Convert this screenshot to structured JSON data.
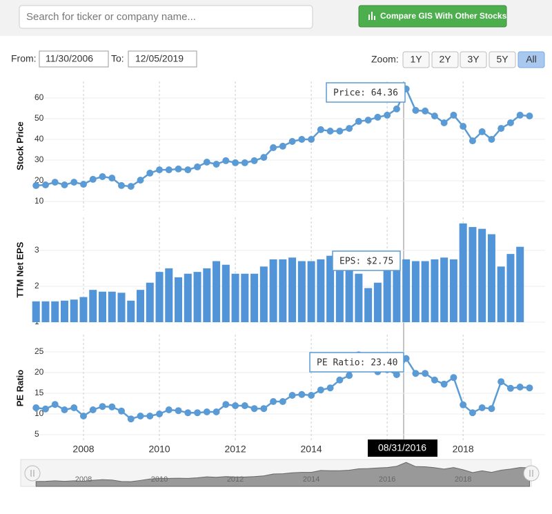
{
  "search_placeholder": "Search for ticker or company name...",
  "compare_button": "Compare GIS With Other Stocks",
  "from_label": "From:",
  "from_date": "11/30/2006",
  "to_label": "To:",
  "to_date": "12/05/2019",
  "zoom_label": "Zoom:",
  "zoom_buttons": [
    "1Y",
    "2Y",
    "3Y",
    "5Y",
    "All"
  ],
  "hover_date": "08/31/2016",
  "chart_data": [
    {
      "type": "line",
      "y_label": "Stock Price",
      "tooltip": "Price: 64.36",
      "color": "#5b9bd5",
      "x": [
        2006.75,
        2007,
        2007.25,
        2007.5,
        2007.75,
        2008,
        2008.25,
        2008.5,
        2008.75,
        2009,
        2009.25,
        2009.5,
        2009.75,
        2010,
        2010.25,
        2010.5,
        2010.75,
        2011,
        2011.25,
        2011.5,
        2011.75,
        2012,
        2012.25,
        2012.5,
        2012.75,
        2013,
        2013.25,
        2013.5,
        2013.75,
        2014,
        2014.25,
        2014.5,
        2014.75,
        2015,
        2015.25,
        2015.5,
        2015.75,
        2016,
        2016.25,
        2016.5,
        2016.75,
        2017,
        2017.25,
        2017.5,
        2017.75,
        2018,
        2018.25,
        2018.5,
        2018.75,
        2019,
        2019.25,
        2019.5,
        2019.75
      ],
      "values": [
        17.7,
        18,
        19.3,
        18,
        19.3,
        18.3,
        20.7,
        22,
        21.3,
        17.7,
        17.3,
        20.3,
        23.7,
        25.3,
        25.3,
        25.7,
        25.3,
        26.7,
        29,
        28,
        29.7,
        28.7,
        28.7,
        29.7,
        31.3,
        36,
        36.7,
        39,
        40,
        40,
        44.7,
        44,
        44,
        45.3,
        48.7,
        49.3,
        50.7,
        51.7,
        54.7,
        64.36,
        54,
        53.7,
        51.3,
        48,
        51.7,
        46.3,
        39.3,
        43.7,
        40,
        45.3,
        48,
        51.7,
        51.3
      ],
      "xlim": [
        2006.655,
        2020.16
      ],
      "xticks": [
        2008,
        2010,
        2012,
        2014,
        2016,
        2018
      ],
      "ylim": [
        5.67,
        68
      ],
      "yticks": [
        10,
        20,
        30,
        40,
        50,
        60
      ],
      "grid": true
    },
    {
      "type": "bar",
      "y_label": "TTM Net EPS",
      "tooltip": "EPS: $2.75",
      "color": "#5294d8",
      "x": [
        2006.75,
        2007,
        2007.25,
        2007.5,
        2007.75,
        2008,
        2008.25,
        2008.5,
        2008.75,
        2009,
        2009.25,
        2009.5,
        2009.75,
        2010,
        2010.25,
        2010.5,
        2010.75,
        2011,
        2011.25,
        2011.5,
        2011.75,
        2012,
        2012.25,
        2012.5,
        2012.75,
        2013,
        2013.25,
        2013.5,
        2013.75,
        2014,
        2014.25,
        2014.5,
        2014.75,
        2015,
        2015.25,
        2015.5,
        2015.75,
        2016,
        2016.25,
        2016.5,
        2016.75,
        2017,
        2017.25,
        2017.5,
        2017.75,
        2018,
        2018.25,
        2018.5,
        2018.75,
        2019,
        2019.25,
        2019.5
      ],
      "values": [
        1.58,
        1.58,
        1.58,
        1.6,
        1.63,
        1.7,
        1.9,
        1.85,
        1.85,
        1.82,
        1.6,
        1.9,
        2.1,
        2.4,
        2.5,
        2.25,
        2.35,
        2.4,
        2.5,
        2.7,
        2.6,
        2.35,
        2.35,
        2.35,
        2.55,
        2.75,
        2.75,
        2.8,
        2.7,
        2.7,
        2.75,
        2.85,
        2.75,
        2.45,
        2.35,
        1.95,
        2.1,
        2.5,
        2.6,
        2.75,
        2.7,
        2.7,
        2.75,
        2.8,
        2.75,
        3.75,
        3.65,
        3.6,
        3.45,
        2.55,
        2.9,
        3.1
      ],
      "xlim": [
        2006.655,
        2020.16
      ],
      "xticks": [
        2008,
        2010,
        2012,
        2014,
        2016,
        2018
      ],
      "ylim": [
        1,
        3.92
      ],
      "yticks": [
        1,
        2,
        3
      ],
      "grid": true
    },
    {
      "type": "line",
      "y_label": "PE Ratio",
      "tooltip": "PE Ratio: 23.40",
      "color": "#5b9bd5",
      "x": [
        2006.75,
        2007,
        2007.25,
        2007.5,
        2007.75,
        2008,
        2008.25,
        2008.5,
        2008.75,
        2009,
        2009.25,
        2009.5,
        2009.75,
        2010,
        2010.25,
        2010.5,
        2010.75,
        2011,
        2011.25,
        2011.5,
        2011.75,
        2012,
        2012.25,
        2012.5,
        2012.75,
        2013,
        2013.25,
        2013.5,
        2013.75,
        2014,
        2014.25,
        2014.5,
        2014.75,
        2015,
        2015.25,
        2015.5,
        2015.75,
        2016,
        2016.25,
        2016.5,
        2016.75,
        2017,
        2017.25,
        2017.5,
        2017.75,
        2018,
        2018.25,
        2018.5,
        2018.75,
        2019,
        2019.25,
        2019.5,
        2019.75
      ],
      "values": [
        11.5,
        11.2,
        12.3,
        11,
        11.5,
        9.5,
        11,
        11.8,
        11.7,
        10.7,
        8.8,
        9.5,
        9.5,
        10,
        11,
        10.8,
        10.3,
        10.3,
        10.5,
        10.5,
        12.3,
        12,
        12,
        11.3,
        11.3,
        13,
        13,
        14.5,
        14.7,
        14.5,
        15.8,
        16.3,
        18.2,
        19.3,
        24.3,
        21.2,
        20.2,
        20.7,
        19.5,
        23.4,
        19.8,
        19.8,
        18.2,
        17.2,
        18.8,
        12.2,
        10.3,
        11.5,
        11.3,
        17.8,
        16.2,
        16.5,
        16.3
      ],
      "xlim": [
        2006.655,
        2020.16
      ],
      "xticks": [
        2008,
        2010,
        2012,
        2014,
        2016,
        2018
      ],
      "ylim": [
        3.33,
        29.17
      ],
      "yticks": [
        5,
        10,
        15,
        20,
        25
      ],
      "grid": true
    }
  ]
}
